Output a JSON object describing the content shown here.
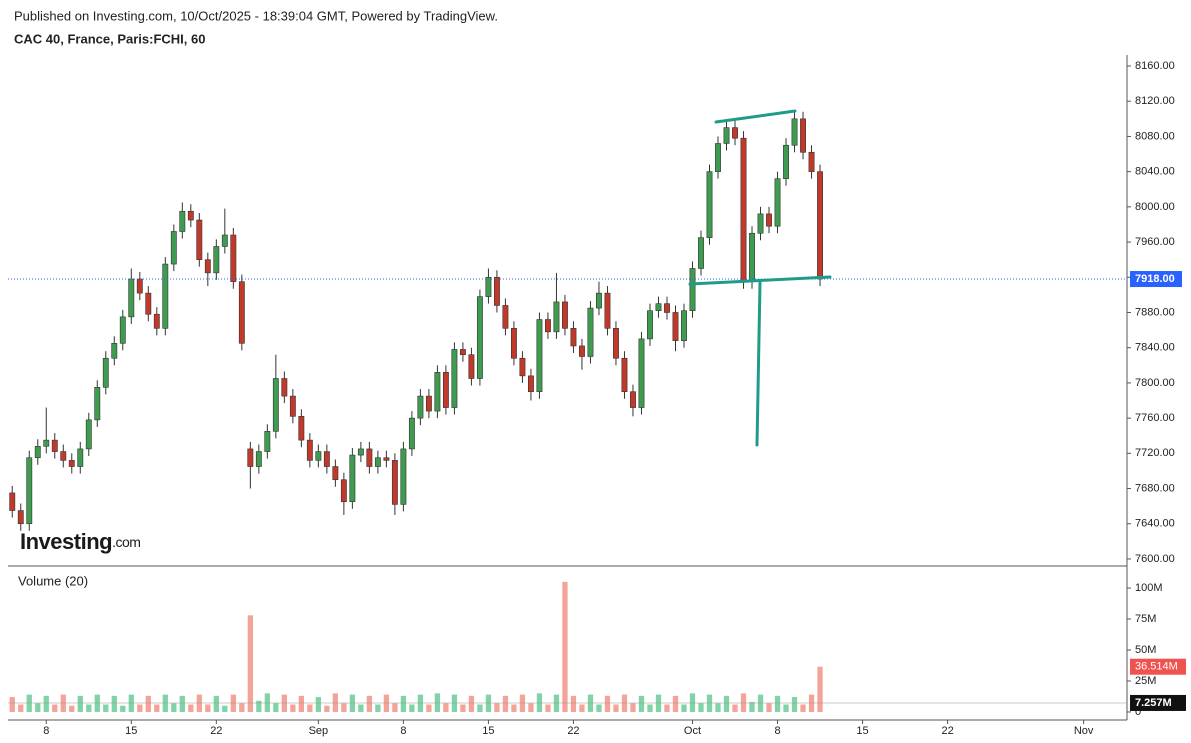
{
  "chart_data": {
    "type": "candlestick",
    "source_note": "Published on Investing.com, 10/Oct/2025 - 18:39:04 GMT, Powered by TradingView.",
    "title": "CAC 40, France, Paris:FCHI, 60",
    "logo_main": "Investing",
    "logo_suffix": ".com",
    "up_color": "#3e9b4f",
    "down_color": "#c0392b",
    "ohlc": [
      [
        7675,
        7683,
        7647,
        7655
      ],
      [
        7655,
        7663,
        7632,
        7640
      ],
      [
        7640,
        7723,
        7632,
        7715
      ],
      [
        7715,
        7736,
        7707,
        7728
      ],
      [
        7728,
        7772,
        7720,
        7735
      ],
      [
        7735,
        7743,
        7714,
        7722
      ],
      [
        7722,
        7730,
        7704,
        7712
      ],
      [
        7712,
        7720,
        7697,
        7705
      ],
      [
        7705,
        7733,
        7697,
        7725
      ],
      [
        7725,
        7766,
        7717,
        7758
      ],
      [
        7758,
        7803,
        7750,
        7795
      ],
      [
        7795,
        7836,
        7787,
        7828
      ],
      [
        7828,
        7853,
        7820,
        7845
      ],
      [
        7845,
        7883,
        7837,
        7875
      ],
      [
        7875,
        7930,
        7867,
        7918
      ],
      [
        7918,
        7926,
        7894,
        7902
      ],
      [
        7902,
        7910,
        7870,
        7878
      ],
      [
        7878,
        7886,
        7854,
        7862
      ],
      [
        7862,
        7943,
        7854,
        7935
      ],
      [
        7935,
        7980,
        7927,
        7972
      ],
      [
        7972,
        8005,
        7964,
        7995
      ],
      [
        7995,
        8003,
        7977,
        7985
      ],
      [
        7985,
        7993,
        7932,
        7940
      ],
      [
        7940,
        7948,
        7910,
        7925
      ],
      [
        7925,
        7963,
        7917,
        7955
      ],
      [
        7955,
        7998,
        7947,
        7968
      ],
      [
        7968,
        7976,
        7907,
        7915
      ],
      [
        7915,
        7923,
        7837,
        7845
      ],
      [
        7725,
        7733,
        7680,
        7705
      ],
      [
        7705,
        7730,
        7697,
        7722
      ],
      [
        7722,
        7753,
        7714,
        7745
      ],
      [
        7745,
        7832,
        7737,
        7805
      ],
      [
        7805,
        7813,
        7777,
        7785
      ],
      [
        7785,
        7793,
        7754,
        7762
      ],
      [
        7762,
        7770,
        7727,
        7735
      ],
      [
        7735,
        7743,
        7704,
        7712
      ],
      [
        7712,
        7730,
        7704,
        7722
      ],
      [
        7722,
        7730,
        7697,
        7705
      ],
      [
        7705,
        7713,
        7682,
        7690
      ],
      [
        7690,
        7698,
        7650,
        7665
      ],
      [
        7665,
        7726,
        7657,
        7718
      ],
      [
        7718,
        7733,
        7710,
        7725
      ],
      [
        7725,
        7733,
        7697,
        7705
      ],
      [
        7705,
        7723,
        7697,
        7715
      ],
      [
        7715,
        7723,
        7704,
        7712
      ],
      [
        7712,
        7720,
        7650,
        7662
      ],
      [
        7662,
        7733,
        7654,
        7725
      ],
      [
        7725,
        7768,
        7717,
        7760
      ],
      [
        7760,
        7793,
        7752,
        7785
      ],
      [
        7785,
        7793,
        7760,
        7768
      ],
      [
        7768,
        7820,
        7760,
        7812
      ],
      [
        7812,
        7820,
        7764,
        7772
      ],
      [
        7772,
        7846,
        7764,
        7838
      ],
      [
        7838,
        7846,
        7824,
        7832
      ],
      [
        7832,
        7840,
        7797,
        7805
      ],
      [
        7805,
        7906,
        7797,
        7898
      ],
      [
        7898,
        7930,
        7890,
        7920
      ],
      [
        7920,
        7928,
        7880,
        7888
      ],
      [
        7888,
        7896,
        7854,
        7862
      ],
      [
        7862,
        7870,
        7820,
        7828
      ],
      [
        7828,
        7836,
        7800,
        7808
      ],
      [
        7808,
        7816,
        7780,
        7790
      ],
      [
        7790,
        7880,
        7782,
        7872
      ],
      [
        7872,
        7880,
        7850,
        7858
      ],
      [
        7858,
        7925,
        7850,
        7892
      ],
      [
        7892,
        7900,
        7854,
        7862
      ],
      [
        7862,
        7870,
        7834,
        7842
      ],
      [
        7842,
        7850,
        7815,
        7830
      ],
      [
        7830,
        7893,
        7822,
        7885
      ],
      [
        7885,
        7915,
        7877,
        7902
      ],
      [
        7902,
        7910,
        7854,
        7862
      ],
      [
        7862,
        7870,
        7820,
        7828
      ],
      [
        7828,
        7836,
        7782,
        7790
      ],
      [
        7790,
        7798,
        7762,
        7772
      ],
      [
        7772,
        7858,
        7764,
        7850
      ],
      [
        7850,
        7890,
        7842,
        7882
      ],
      [
        7882,
        7898,
        7874,
        7890
      ],
      [
        7890,
        7898,
        7872,
        7880
      ],
      [
        7880,
        7888,
        7836,
        7848
      ],
      [
        7848,
        7890,
        7840,
        7882
      ],
      [
        7882,
        7938,
        7874,
        7930
      ],
      [
        7930,
        7973,
        7922,
        7965
      ],
      [
        7965,
        8048,
        7957,
        8040
      ],
      [
        8040,
        8080,
        8032,
        8072
      ],
      [
        8072,
        8098,
        8064,
        8090
      ],
      [
        8090,
        8098,
        8070,
        8078
      ],
      [
        8078,
        8086,
        7907,
        7915
      ],
      [
        7915,
        7978,
        7907,
        7970
      ],
      [
        7970,
        8000,
        7962,
        7992
      ],
      [
        7992,
        8000,
        7970,
        7978
      ],
      [
        7978,
        8040,
        7970,
        8032
      ],
      [
        8032,
        8078,
        8024,
        8070
      ],
      [
        8070,
        8108,
        8062,
        8100
      ],
      [
        8100,
        8108,
        8054,
        8062
      ],
      [
        8062,
        8070,
        8032,
        8040
      ],
      [
        8040,
        8048,
        7910,
        7918
      ]
    ],
    "xlim": [
      -0.5,
      131.1
    ],
    "xticks": [
      {
        "value": 4,
        "label": "8"
      },
      {
        "value": 14,
        "label": "15"
      },
      {
        "value": 24,
        "label": "22"
      },
      {
        "value": 36,
        "label": "Sep"
      },
      {
        "value": 46,
        "label": "8"
      },
      {
        "value": 56,
        "label": "15"
      },
      {
        "value": 66,
        "label": "22"
      },
      {
        "value": 80,
        "label": "Oct"
      },
      {
        "value": 90,
        "label": "8"
      },
      {
        "value": 100,
        "label": "15"
      },
      {
        "value": 110,
        "label": "22"
      },
      {
        "value": 126,
        "label": "Nov"
      }
    ],
    "ylim": [
      7592,
      8172.5
    ],
    "yticks": [
      {
        "value": 7600,
        "label": "7600.00"
      },
      {
        "value": 7640,
        "label": "7640.00"
      },
      {
        "value": 7680,
        "label": "7680.00"
      },
      {
        "value": 7720,
        "label": "7720.00"
      },
      {
        "value": 7760,
        "label": "7760.00"
      },
      {
        "value": 7800,
        "label": "7800.00"
      },
      {
        "value": 7840,
        "label": "7840.00"
      },
      {
        "value": 7880,
        "label": "7880.00"
      },
      {
        "value": 7920,
        "label": "7920.00"
      },
      {
        "value": 7960,
        "label": "7960.00"
      },
      {
        "value": 8000,
        "label": "8000.00"
      },
      {
        "value": 8040,
        "label": "8040.00"
      },
      {
        "value": 8080,
        "label": "8080.00"
      },
      {
        "value": 8120,
        "label": "8120.00"
      },
      {
        "value": 8160,
        "label": "8160.00"
      }
    ],
    "last_price": {
      "value": 7918,
      "label": "7918.00"
    },
    "last_price_color": "#2962ff",
    "volume": {
      "title": "Volume (20)",
      "up_color": "#7fd3a6",
      "down_color": "#f3a398",
      "values": [
        12,
        6,
        14,
        7,
        13,
        6,
        14,
        5,
        13,
        6,
        14,
        6,
        13,
        5,
        14,
        6,
        13,
        6,
        14,
        7,
        13,
        6,
        14,
        6,
        13,
        5,
        14,
        7,
        78,
        9,
        15,
        7,
        14,
        6,
        13,
        6,
        12,
        5,
        15,
        7,
        14,
        6,
        13,
        6,
        14,
        7,
        13,
        6,
        14,
        6,
        15,
        7,
        14,
        6,
        13,
        6,
        14,
        7,
        13,
        6,
        14,
        7,
        15,
        6,
        14,
        105,
        13,
        6,
        14,
        6,
        13,
        6,
        14,
        7,
        13,
        6,
        14,
        6,
        13,
        6,
        15,
        7,
        14,
        7,
        13,
        6,
        15,
        8,
        14,
        7,
        13,
        6,
        12,
        6,
        14,
        36.514
      ],
      "value_labels": [
        null,
        null,
        null,
        null,
        null,
        null,
        null,
        null,
        null,
        null,
        null,
        null,
        null,
        null,
        null,
        null,
        null,
        null,
        null,
        null,
        null,
        null,
        null,
        null,
        null,
        null,
        null,
        null,
        null,
        null,
        null,
        null,
        null,
        null,
        null,
        null,
        null,
        null,
        null,
        null,
        null,
        null,
        null,
        null,
        null,
        null,
        null,
        null,
        null,
        null,
        null,
        null,
        null,
        null,
        null,
        null,
        null,
        null,
        null,
        null,
        null,
        null,
        null,
        null,
        null,
        null,
        null,
        null,
        null,
        null,
        null,
        null,
        null,
        null,
        null,
        null,
        null,
        null,
        null,
        null,
        null,
        null,
        null,
        null,
        null,
        null,
        null,
        null,
        null,
        null,
        null,
        null,
        null,
        null,
        null,
        "36.514M"
      ],
      "label_color": "#ef5350",
      "ylim": [
        -6.5,
        117
      ],
      "yticks": [
        0,
        {
          "value": 25,
          "label": "25M"
        },
        {
          "value": 50,
          "label": "50M"
        },
        {
          "value": 75,
          "label": "75M"
        },
        {
          "value": 100,
          "label": "100M"
        }
      ],
      "ma_last": {
        "value": 7.257,
        "label": "7.257M"
      }
    }
  }
}
